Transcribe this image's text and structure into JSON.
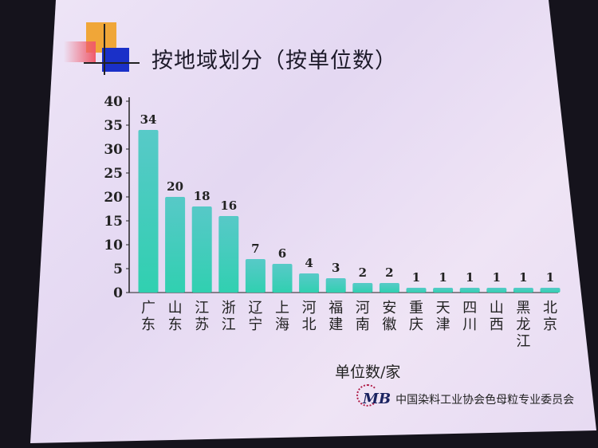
{
  "slide": {
    "title": "按地域划分（按单位数）",
    "org_logo": "MB",
    "org_name": "中国染料工业协会色母粒专业委员会"
  },
  "colors": {
    "bar_top": "#3ec6c0",
    "bar_bottom": "#30d0b0",
    "accent_orange": "#f0a030",
    "accent_blue": "#1a30c8",
    "accent_red": "#e03040"
  },
  "chart_data": {
    "type": "bar",
    "title": "按地域划分（按单位数）",
    "xlabel": "单位数/家",
    "ylabel": "",
    "ylim": [
      0,
      40
    ],
    "yticks": [
      0,
      5,
      10,
      15,
      20,
      25,
      30,
      35,
      40
    ],
    "grid": false,
    "categories": [
      "广东",
      "山东",
      "江苏",
      "浙江",
      "辽宁",
      "上海",
      "河北",
      "福建",
      "河南",
      "安徽",
      "重庆",
      "天津",
      "四川",
      "山西",
      "黑龙江",
      "北京"
    ],
    "values": [
      34,
      20,
      18,
      16,
      7,
      6,
      4,
      3,
      2,
      2,
      1,
      1,
      1,
      1,
      1,
      1
    ],
    "data_labels": true
  }
}
